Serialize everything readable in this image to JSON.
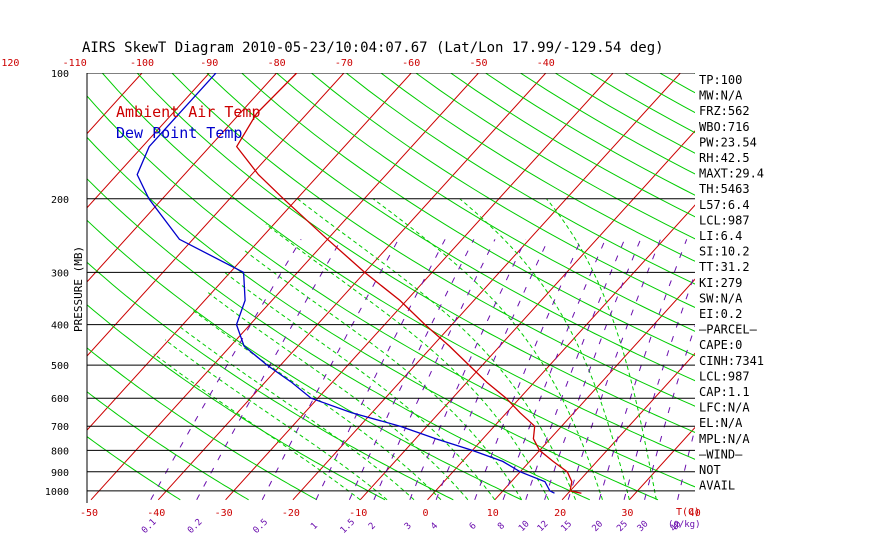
{
  "chart_data": {
    "type": "line",
    "title": "AIRS SkewT Diagram 2010-05-23/10:04:07.67 (Lat/Lon 17.99/-129.54 deg)",
    "ylabel": "PRESSURE (MB)",
    "xlabel": "T(C)",
    "mixing_unit": "(g/kg)",
    "p_ticks": [
      100,
      200,
      300,
      400,
      500,
      600,
      700,
      800,
      900,
      1000
    ],
    "p_range": [
      100,
      1050
    ],
    "t_bottom_ticks": [
      -50,
      -40,
      -30,
      -20,
      -10,
      0,
      10,
      20,
      30,
      40
    ],
    "t_top_ticks": [
      -120,
      -110,
      -100,
      -90,
      -80,
      -70,
      -60,
      -50,
      -40
    ],
    "mixing_ratio_labels": [
      "0.1",
      "0.2",
      "0.5",
      "1",
      "1.5",
      "2",
      "3",
      "4",
      "6",
      "8",
      "10",
      "12",
      "15",
      "20",
      "25",
      "30",
      "40"
    ],
    "legend": [
      {
        "name": "Ambient Air Temp",
        "color": "#cc0000"
      },
      {
        "name": "Dew Point Temp",
        "color": "#0000cc"
      }
    ],
    "series": [
      {
        "name": "Ambient Air Temp",
        "color": "#cc0000",
        "points": [
          {
            "p": 100,
            "t": -77
          },
          {
            "p": 125,
            "t": -77.5
          },
          {
            "p": 150,
            "t": -76
          },
          {
            "p": 175,
            "t": -69
          },
          {
            "p": 200,
            "t": -62
          },
          {
            "p": 250,
            "t": -50
          },
          {
            "p": 300,
            "t": -40
          },
          {
            "p": 350,
            "t": -31
          },
          {
            "p": 400,
            "t": -24
          },
          {
            "p": 450,
            "t": -17.5
          },
          {
            "p": 500,
            "t": -12
          },
          {
            "p": 550,
            "t": -7
          },
          {
            "p": 600,
            "t": -2
          },
          {
            "p": 650,
            "t": 2
          },
          {
            "p": 700,
            "t": 6
          },
          {
            "p": 750,
            "t": 7.5
          },
          {
            "p": 800,
            "t": 10
          },
          {
            "p": 850,
            "t": 13.5
          },
          {
            "p": 900,
            "t": 17
          },
          {
            "p": 950,
            "t": 19
          },
          {
            "p": 1000,
            "t": 20
          },
          {
            "p": 1013,
            "t": 22
          }
        ]
      },
      {
        "name": "Dew Point Temp",
        "color": "#0000cc",
        "points": [
          {
            "p": 100,
            "t": -89
          },
          {
            "p": 150,
            "t": -89
          },
          {
            "p": 175,
            "t": -87
          },
          {
            "p": 200,
            "t": -82
          },
          {
            "p": 250,
            "t": -72
          },
          {
            "p": 300,
            "t": -58
          },
          {
            "p": 350,
            "t": -54
          },
          {
            "p": 400,
            "t": -52
          },
          {
            "p": 450,
            "t": -48
          },
          {
            "p": 500,
            "t": -42
          },
          {
            "p": 550,
            "t": -36
          },
          {
            "p": 600,
            "t": -31
          },
          {
            "p": 650,
            "t": -23
          },
          {
            "p": 700,
            "t": -14
          },
          {
            "p": 750,
            "t": -7
          },
          {
            "p": 800,
            "t": 0
          },
          {
            "p": 850,
            "t": 6
          },
          {
            "p": 900,
            "t": 10
          },
          {
            "p": 950,
            "t": 15
          },
          {
            "p": 1000,
            "t": 17
          },
          {
            "p": 1013,
            "t": 18
          }
        ]
      }
    ],
    "stats": [
      "TP:100",
      "MW:N/A",
      "FRZ:562",
      "WBO:716",
      "PW:23.54",
      "RH:42.5",
      "MAXT:29.4",
      "TH:5463",
      "L57:6.4",
      "LCL:987",
      "LI:6.4",
      "SI:10.2",
      "TT:31.2",
      "KI:279",
      "SW:N/A",
      "EI:0.2",
      "—PARCEL—",
      "CAPE:0",
      "CINH:7341",
      "LCL:987",
      "CAP:1.1",
      "LFC:N/A",
      "EL:N/A",
      "MPL:N/A",
      "—WIND—",
      "NOT",
      "AVAIL"
    ],
    "colors": {
      "isotherm": "#cc0000",
      "dry_adiabat": "#00cc00",
      "moist_adiabat": "#00cc00",
      "mixing_ratio": "#6a0dad",
      "isobar": "#000000"
    },
    "grid": true,
    "legend_position": "top-left"
  }
}
